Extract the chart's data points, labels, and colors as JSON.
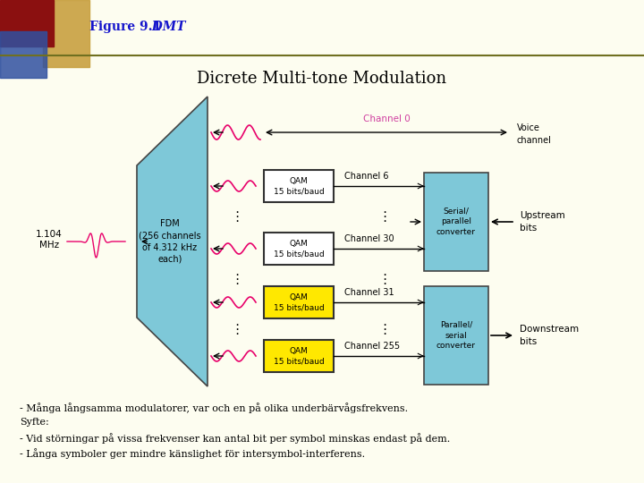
{
  "title_fig": "Figure 9.1",
  "title_dmt": "  DMT",
  "subtitle": "Dicrete Multi-tone Modulation",
  "bg_color": "#FDFDF0",
  "header_red": "#8B1010",
  "header_blue": "#3050A0",
  "header_gold": "#C8A040",
  "header_line_color": "#707020",
  "figure_text_color": "#1515CC",
  "subtitle_color": "#000000",
  "channel0_label": "Channel 0",
  "channel6_label": "Channel 6",
  "channel30_label": "Channel 30",
  "channel31_label": "Channel 31",
  "channel255_label": "Channel 255",
  "qam_label": "QAM\n15 bits/baud",
  "fdm_label": "FDM\n(256 channels\nof 4.312 kHz\neach)",
  "freq_label": "1.104\nMHz",
  "voice_label": "Voice\nchannel",
  "upstream_label": "Upstream\nbits",
  "downstream_label": "Downstream\nbits",
  "serial_label": "Serial/\nparallel\nconverter",
  "parallel_label": "Parallel/\nserial\nconverter",
  "text_line1": "- Många långsamma modulatorer, var och en på olika underbärvågsfrekvens.",
  "text_line2": "Syfte:",
  "text_line3": "- Vid störningar på vissa frekvenser kan antal bit per symbol minskas endast på dem.",
  "text_line4": "- Långa symboler ger mindre känslighet för intersymbol-interferens.",
  "light_blue": "#7EC8D8",
  "yellow": "#FFE800",
  "white": "#FFFFFF",
  "pink": "#E8006A",
  "channel0_pink": "#E060A0",
  "arrow_color": "#000000"
}
